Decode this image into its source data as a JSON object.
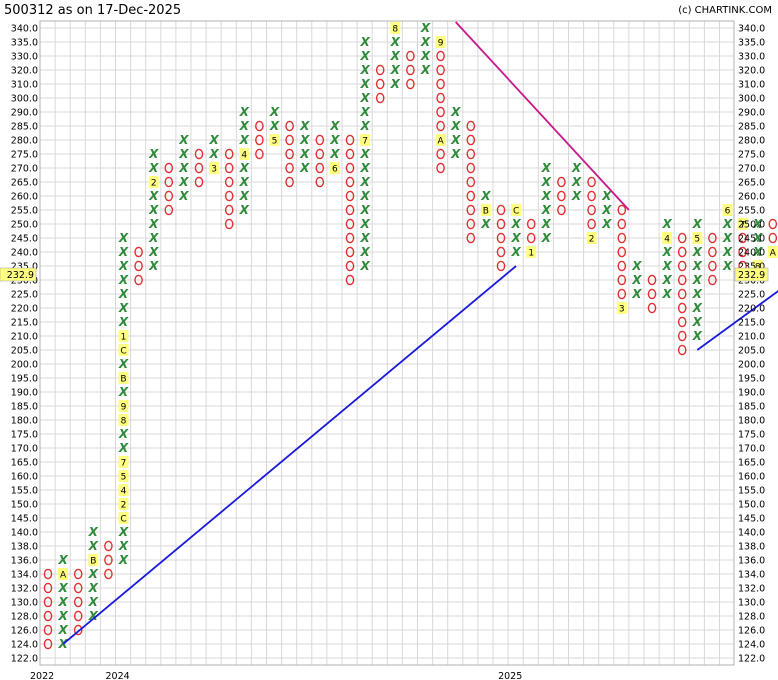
{
  "header": {
    "title": "500312 as on 17-Dec-2025",
    "source": "(c) CHARTINK.COM"
  },
  "chart_data": {
    "type": "point-and-figure",
    "ylim": [
      122,
      340
    ],
    "y_ticks": [
      "340.0",
      "335.0",
      "330.0",
      "320.0",
      "310.0",
      "300.0",
      "290.0",
      "285.0",
      "280.0",
      "275.0",
      "270.0",
      "265.0",
      "260.0",
      "255.0",
      "250.0",
      "245.0",
      "240.0",
      "235.0",
      "230.0",
      "225.0",
      "220.0",
      "215.0",
      "210.0",
      "205.0",
      "200.0",
      "195.0",
      "190.0",
      "185.0",
      "180.0",
      "175.0",
      "170.0",
      "165.0",
      "160.0",
      "155.0",
      "150.0",
      "145.0",
      "140.0",
      "138.0",
      "136.0",
      "134.0",
      "132.0",
      "130.0",
      "128.0",
      "126.0",
      "124.0",
      "122.0"
    ],
    "last_price": "232.9",
    "x_labels": [
      {
        "col": 0,
        "text": "2022"
      },
      {
        "col": 5,
        "text": "2024"
      },
      {
        "col": 31,
        "text": "2025"
      }
    ],
    "columns": [
      {
        "type": "O",
        "low": "124.0",
        "high": "134.0",
        "labels": []
      },
      {
        "type": "X",
        "low": "124.0",
        "high": "136.0",
        "labels": [
          {
            "at": "134.0",
            "text": "A"
          }
        ]
      },
      {
        "type": "O",
        "low": "126.0",
        "high": "134.0",
        "labels": []
      },
      {
        "type": "X",
        "low": "128.0",
        "high": "140.0",
        "labels": [
          {
            "at": "136.0",
            "text": "B"
          }
        ]
      },
      {
        "type": "O",
        "low": "134.0",
        "high": "138.0",
        "labels": []
      },
      {
        "type": "X",
        "low": "136.0",
        "high": "245.0",
        "labels": [
          {
            "at": "145.0",
            "text": "C"
          },
          {
            "at": "150.0",
            "text": "2"
          },
          {
            "at": "155.0",
            "text": "4"
          },
          {
            "at": "160.0",
            "text": "5"
          },
          {
            "at": "165.0",
            "text": "7"
          },
          {
            "at": "180.0",
            "text": "8"
          },
          {
            "at": "185.0",
            "text": "9"
          },
          {
            "at": "195.0",
            "text": "B"
          },
          {
            "at": "205.0",
            "text": "C"
          },
          {
            "at": "210.0",
            "text": "1"
          }
        ]
      },
      {
        "type": "O",
        "low": "230.0",
        "high": "240.0",
        "labels": []
      },
      {
        "type": "X",
        "low": "235.0",
        "high": "275.0",
        "labels": [
          {
            "at": "265.0",
            "text": "2"
          }
        ]
      },
      {
        "type": "O",
        "low": "255.0",
        "high": "270.0",
        "labels": []
      },
      {
        "type": "X",
        "low": "260.0",
        "high": "280.0",
        "labels": []
      },
      {
        "type": "O",
        "low": "265.0",
        "high": "275.0",
        "labels": []
      },
      {
        "type": "X",
        "low": "270.0",
        "high": "280.0",
        "labels": [
          {
            "at": "270.0",
            "text": "3"
          }
        ]
      },
      {
        "type": "O",
        "low": "250.0",
        "high": "275.0",
        "labels": []
      },
      {
        "type": "X",
        "low": "255.0",
        "high": "290.0",
        "labels": [
          {
            "at": "275.0",
            "text": "4"
          }
        ]
      },
      {
        "type": "O",
        "low": "275.0",
        "high": "285.0",
        "labels": []
      },
      {
        "type": "X",
        "low": "280.0",
        "high": "290.0",
        "labels": [
          {
            "at": "280.0",
            "text": "5"
          }
        ]
      },
      {
        "type": "O",
        "low": "265.0",
        "high": "285.0",
        "labels": []
      },
      {
        "type": "X",
        "low": "270.0",
        "high": "285.0",
        "labels": []
      },
      {
        "type": "O",
        "low": "265.0",
        "high": "280.0",
        "labels": []
      },
      {
        "type": "X",
        "low": "270.0",
        "high": "285.0",
        "labels": [
          {
            "at": "270.0",
            "text": "6"
          }
        ]
      },
      {
        "type": "O",
        "low": "230.0",
        "high": "280.0",
        "labels": []
      },
      {
        "type": "X",
        "low": "235.0",
        "high": "335.0",
        "labels": [
          {
            "at": "280.0",
            "text": "7"
          }
        ]
      },
      {
        "type": "O",
        "low": "300.0",
        "high": "320.0",
        "labels": []
      },
      {
        "type": "X",
        "low": "310.0",
        "high": "340.0",
        "labels": [
          {
            "at": "340.0",
            "text": "8"
          }
        ]
      },
      {
        "type": "O",
        "low": "310.0",
        "high": "330.0",
        "labels": []
      },
      {
        "type": "X",
        "low": "320.0",
        "high": "340.0",
        "labels": []
      },
      {
        "type": "O",
        "low": "270.0",
        "high": "335.0",
        "labels": [
          {
            "at": "335.0",
            "text": "9"
          },
          {
            "at": "280.0",
            "text": "A"
          }
        ]
      },
      {
        "type": "X",
        "low": "275.0",
        "high": "290.0",
        "labels": []
      },
      {
        "type": "O",
        "low": "245.0",
        "high": "285.0",
        "labels": []
      },
      {
        "type": "X",
        "low": "250.0",
        "high": "260.0",
        "labels": [
          {
            "at": "255.0",
            "text": "B"
          }
        ]
      },
      {
        "type": "O",
        "low": "235.0",
        "high": "255.0",
        "labels": []
      },
      {
        "type": "X",
        "low": "240.0",
        "high": "255.0",
        "labels": [
          {
            "at": "255.0",
            "text": "C"
          }
        ]
      },
      {
        "type": "O",
        "low": "240.0",
        "high": "250.0",
        "labels": [
          {
            "at": "240.0",
            "text": "1"
          }
        ]
      },
      {
        "type": "X",
        "low": "245.0",
        "high": "270.0",
        "labels": []
      },
      {
        "type": "O",
        "low": "255.0",
        "high": "265.0",
        "labels": []
      },
      {
        "type": "X",
        "low": "260.0",
        "high": "270.0",
        "labels": []
      },
      {
        "type": "O",
        "low": "245.0",
        "high": "265.0",
        "labels": [
          {
            "at": "245.0",
            "text": "2"
          }
        ]
      },
      {
        "type": "X",
        "low": "250.0",
        "high": "260.0",
        "labels": []
      },
      {
        "type": "O",
        "low": "220.0",
        "high": "255.0",
        "labels": [
          {
            "at": "220.0",
            "text": "3"
          }
        ]
      },
      {
        "type": "X",
        "low": "225.0",
        "high": "235.0",
        "labels": []
      },
      {
        "type": "O",
        "low": "220.0",
        "high": "230.0",
        "labels": []
      },
      {
        "type": "X",
        "low": "225.0",
        "high": "250.0",
        "labels": [
          {
            "at": "245.0",
            "text": "4"
          }
        ]
      },
      {
        "type": "O",
        "low": "205.0",
        "high": "245.0",
        "labels": []
      },
      {
        "type": "X",
        "low": "210.0",
        "high": "250.0",
        "labels": [
          {
            "at": "245.0",
            "text": "5"
          }
        ]
      },
      {
        "type": "O",
        "low": "230.0",
        "high": "245.0",
        "labels": []
      },
      {
        "type": "X",
        "low": "235.0",
        "high": "255.0",
        "labels": [
          {
            "at": "255.0",
            "text": "6"
          }
        ]
      },
      {
        "type": "O",
        "low": "235.0",
        "high": "250.0",
        "labels": [
          {
            "at": "250.0",
            "text": "7"
          }
        ]
      },
      {
        "type": "X",
        "low": "235.0",
        "high": "250.0",
        "labels": [
          {
            "at": "235.0",
            "text": "8"
          }
        ]
      },
      {
        "type": "O",
        "low": "240.0",
        "high": "250.0",
        "labels": [
          {
            "at": "240.0",
            "text": "A"
          }
        ]
      },
      {
        "type": "X",
        "low": "245.0",
        "high": "255.0",
        "labels": []
      },
      {
        "type": "O",
        "low": "230.0",
        "high": "250.0",
        "labels": [
          {
            "at": "250.0",
            "text": "C"
          }
        ]
      }
    ],
    "trendlines": [
      {
        "color": "#1a1adc",
        "from": {
          "col": 1,
          "price": "124.0"
        },
        "to": {
          "col": 31,
          "price": "235.0"
        }
      },
      {
        "color": "#c8188c",
        "from": {
          "col": 27,
          "price": "340.0"
        },
        "to": {
          "col": 39,
          "price": "255.0"
        }
      },
      {
        "color": "#1a1adc",
        "from": {
          "col": 43,
          "price": "205.0"
        },
        "to": {
          "col": 50,
          "price": "232.9"
        }
      }
    ],
    "grid": true,
    "colors": {
      "x": "#2e8b3a",
      "o": "#e03030",
      "grid": "#d8d8d8",
      "highlight": "#ffff80",
      "up_trend": "#1a1adc",
      "down_trend": "#c8188c"
    }
  }
}
